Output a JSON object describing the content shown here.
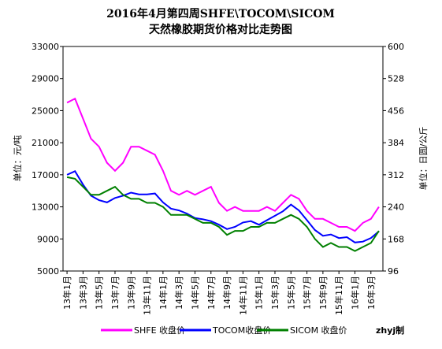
{
  "chart_data": {
    "type": "line",
    "title": "2016年4月第四周SHFE\\TOCOM\\SICOM",
    "subtitle": "天然橡胶期货价格对比走势图",
    "ylabel": "单位：元/吨",
    "y2label": "单位：日圆/公斤",
    "credit": "zhyj制",
    "categories": [
      "13年1月",
      null,
      "13年3月",
      null,
      "13年5月",
      null,
      "13年7月",
      null,
      "13年9月",
      null,
      "13年11月",
      null,
      "14年1月",
      null,
      "14年3月",
      null,
      "14年5月",
      null,
      "14年7月",
      null,
      "14年9月",
      null,
      "14年11月",
      null,
      "15年1月",
      null,
      "15年3月",
      null,
      "15年5月",
      null,
      "15年7月",
      null,
      "15年9月",
      null,
      "15年11月",
      null,
      "16年1月",
      null,
      "16年3月",
      null
    ],
    "ylim": [
      5000,
      33000
    ],
    "yticks": [
      5000,
      9000,
      13000,
      17000,
      21000,
      25000,
      29000,
      33000
    ],
    "y2lim": [
      96,
      600
    ],
    "y2ticks": [
      96,
      168,
      240,
      312,
      384,
      456,
      528,
      600
    ],
    "series": [
      {
        "name": "SHFE 收盘价",
        "color": "#ff00ff",
        "values": [
          26000,
          26500,
          24000,
          21500,
          20500,
          18500,
          17500,
          18500,
          20500,
          20500,
          20000,
          19500,
          17500,
          15000,
          14500,
          15000,
          14500,
          15000,
          15500,
          13500,
          12500,
          13000,
          12500,
          12500,
          12500,
          13000,
          12500,
          13500,
          14500,
          14000,
          12500,
          11500,
          11500,
          11000,
          10500,
          10500,
          10000,
          11000,
          11500,
          13000
        ]
      },
      {
        "name": "TOCOM收盘价",
        "color": "#0000ff",
        "axis": "y2",
        "values": [
          312,
          320,
          290,
          265,
          255,
          250,
          260,
          265,
          272,
          268,
          268,
          270,
          250,
          236,
          232,
          225,
          215,
          212,
          208,
          200,
          190,
          195,
          205,
          208,
          200,
          210,
          220,
          230,
          245,
          232,
          210,
          188,
          175,
          178,
          170,
          172,
          160,
          162,
          170,
          185
        ]
      },
      {
        "name": "SICOM 收盘价",
        "color": "#008000",
        "values": [
          16700,
          16500,
          15500,
          14500,
          14500,
          15000,
          15500,
          14500,
          14000,
          14000,
          13500,
          13500,
          13000,
          12000,
          12000,
          12000,
          11500,
          11000,
          11000,
          10500,
          9500,
          10000,
          10000,
          10500,
          10500,
          11000,
          11000,
          11500,
          12000,
          11500,
          10500,
          9000,
          8000,
          8500,
          8000,
          8000,
          7500,
          8000,
          8500,
          10000
        ]
      }
    ]
  }
}
